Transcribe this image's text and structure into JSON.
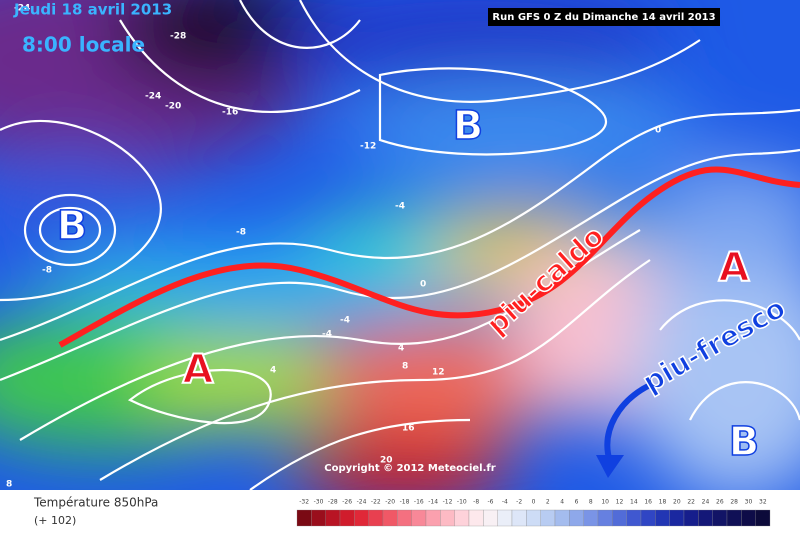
{
  "header": {
    "valid_date": "Jeudi 18 avril 2013",
    "valid_time": "8:00 locale",
    "run": "Run GFS 0 Z du Dimanche 14 avril 2013"
  },
  "pressure_centers": [
    "B",
    "B",
    "B",
    "A",
    "A"
  ],
  "annotations": {
    "warm": "piu-caldo",
    "cool": "piu-fresco"
  },
  "contour_labels": [
    "-24",
    "-28",
    "-24",
    "-20",
    "-16",
    "-12",
    "-8",
    "-4",
    "-8",
    "-4",
    "-4",
    "0",
    "4",
    "4",
    "8",
    "12",
    "16",
    "20",
    "0",
    "8"
  ],
  "copyright": "Copyright © 2012 Meteociel.fr",
  "footer": {
    "field": "Température 850hPa",
    "step": "(+ 102)"
  },
  "scale": {
    "labels": [
      -32,
      -30,
      -28,
      -26,
      -24,
      -22,
      -20,
      -18,
      -16,
      -14,
      -12,
      -10,
      -8,
      -6,
      -4,
      -2,
      0,
      2,
      4,
      6,
      8,
      10,
      12,
      14,
      16,
      18,
      20,
      22,
      24,
      26,
      28,
      30,
      32
    ],
    "colors": [
      "#7a0a14",
      "#9a0e1c",
      "#b81424",
      "#d01c2c",
      "#e02838",
      "#e84050",
      "#f05866",
      "#f47080",
      "#f88898",
      "#fba0ae",
      "#fdbac4",
      "#fed2da",
      "#fde8ec",
      "#f8f0f4",
      "#eaeef8",
      "#dde6f8",
      "#cddcf6",
      "#b8ccf2",
      "#a4bcee",
      "#8ea8ea",
      "#7a94e6",
      "#6680e0",
      "#526cd8",
      "#4058d0",
      "#3046c4",
      "#2236b4",
      "#1a28a0",
      "#161e8c",
      "#141878",
      "#121466",
      "#101056",
      "#0e0c48",
      "#0c0a3a"
    ]
  }
}
